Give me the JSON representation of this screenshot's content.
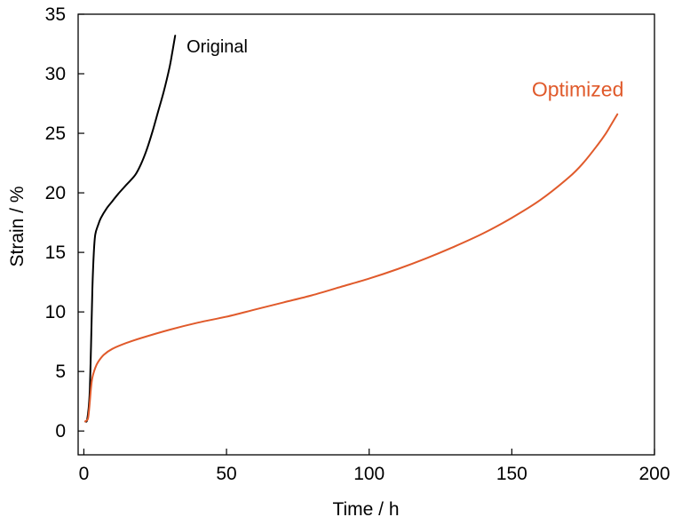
{
  "chart_data": {
    "type": "line",
    "xlabel": "Time / h",
    "ylabel": "Strain / %",
    "xlim": [
      -2,
      200
    ],
    "ylim": [
      -2,
      35
    ],
    "xticks": [
      0,
      50,
      100,
      150,
      200
    ],
    "yticks": [
      0,
      5,
      10,
      15,
      20,
      25,
      30,
      35
    ],
    "grid": false,
    "legend": "none",
    "series": [
      {
        "name": "Original",
        "color": "#000000",
        "x": [
          0.5,
          1.2,
          2.0,
          2.5,
          3.0,
          3.5,
          4.0,
          5.0,
          6.0,
          8.0,
          10.0,
          12.0,
          15.0,
          18.0,
          20.0,
          22.0,
          24.0,
          26.0,
          28.0,
          30.0,
          31.0,
          32.0
        ],
        "y": [
          0.8,
          1.0,
          3.0,
          7.0,
          12.0,
          15.0,
          16.5,
          17.3,
          17.9,
          18.7,
          19.3,
          19.9,
          20.7,
          21.5,
          22.4,
          23.6,
          25.1,
          26.8,
          28.5,
          30.5,
          31.8,
          33.2
        ]
      },
      {
        "name": "Optimized",
        "color": "#e05a2b",
        "x": [
          0.5,
          1.0,
          1.5,
          2.0,
          2.5,
          3.0,
          4.0,
          5.0,
          7.0,
          10.0,
          15.0,
          20.0,
          30.0,
          40.0,
          50.0,
          60.0,
          70.0,
          80.0,
          90.0,
          100.0,
          110.0,
          120.0,
          130.0,
          140.0,
          150.0,
          160.0,
          170.0,
          175.0,
          180.0,
          183.0,
          185.0,
          187.0
        ],
        "y": [
          0.8,
          0.9,
          1.1,
          2.2,
          3.6,
          4.5,
          5.3,
          5.8,
          6.4,
          6.9,
          7.4,
          7.8,
          8.5,
          9.1,
          9.6,
          10.2,
          10.8,
          11.4,
          12.1,
          12.8,
          13.6,
          14.5,
          15.5,
          16.6,
          17.9,
          19.4,
          21.3,
          22.5,
          24.0,
          25.0,
          25.8,
          26.6
        ]
      }
    ],
    "annotations": [
      {
        "text": "Original",
        "x": 36,
        "y": 31.8,
        "color": "#000000"
      },
      {
        "text": "Optimized",
        "x": 157,
        "y": 28.1,
        "color": "#e05a2b"
      }
    ]
  }
}
